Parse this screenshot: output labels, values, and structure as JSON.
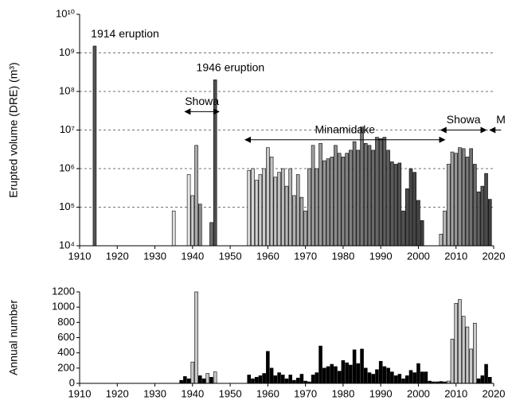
{
  "chart_data": [
    {
      "type": "bar",
      "ylabel": "Erupted volume (DRE) (m³)",
      "ylog": true,
      "grid": true,
      "xlim": [
        1910,
        2020
      ],
      "xticks": [
        1910,
        1920,
        1930,
        1940,
        1950,
        1960,
        1970,
        1980,
        1990,
        2000,
        2010,
        2020
      ],
      "ylim": [
        10000,
        10000000000
      ],
      "yticks": [
        {
          "value": 10000,
          "label": "10⁴"
        },
        {
          "value": 100000,
          "label": "10⁵"
        },
        {
          "value": 1000000,
          "label": "10⁶"
        },
        {
          "value": 10000000,
          "label": "10⁷"
        },
        {
          "value": 100000000,
          "label": "10⁸"
        },
        {
          "value": 1000000000,
          "label": "10⁹"
        },
        {
          "value": 10000000000,
          "label": "10¹⁰"
        }
      ],
      "series": [
        {
          "x": [
            1914
          ],
          "values": [
            1500000000
          ],
          "gradient": [
            "#555555",
            "#555555"
          ]
        },
        {
          "x": [
            1935
          ],
          "values": [
            80000
          ],
          "gradient": [
            "#dddddd",
            "#dddddd"
          ]
        },
        {
          "x": [
            1939,
            1940,
            1941,
            1942,
            1945,
            1946
          ],
          "values": [
            700000,
            200000,
            4000000,
            120000,
            40000,
            200000000
          ],
          "gradient": [
            "#e8e8e8",
            "#505050"
          ]
        },
        {
          "x": [
            1955,
            1956,
            1957,
            1958,
            1959,
            1960,
            1961,
            1962,
            1963,
            1964,
            1965,
            1966,
            1967,
            1968,
            1969,
            1970,
            1971,
            1972,
            1973,
            1974,
            1975,
            1976,
            1977,
            1978,
            1979,
            1980,
            1981,
            1982,
            1983,
            1984,
            1985,
            1986,
            1987,
            1988,
            1989,
            1990,
            1991,
            1992,
            1993,
            1994,
            1995,
            1996,
            1997,
            1998,
            1999,
            2000,
            2001
          ],
          "values": [
            900000,
            1000000,
            500000,
            700000,
            1000000,
            3500000,
            2000000,
            600000,
            800000,
            1000000,
            350000,
            1000000,
            200000,
            700000,
            180000,
            80000,
            1000000,
            4000000,
            1000000,
            4500000,
            1600000,
            1800000,
            2000000,
            4000000,
            2500000,
            2000000,
            2500000,
            3000000,
            5000000,
            3000000,
            12000000,
            4500000,
            4000000,
            3000000,
            6500000,
            6000000,
            6500000,
            3000000,
            1500000,
            1300000,
            1400000,
            80000,
            300000,
            1000000,
            800000,
            150000,
            45000
          ],
          "gradient": [
            "#d8d8d8",
            "#404040"
          ]
        },
        {
          "x": [
            2006,
            2007,
            2008,
            2009,
            2010,
            2011,
            2012,
            2013,
            2014,
            2015,
            2016,
            2017,
            2018,
            2019
          ],
          "values": [
            20000,
            80000,
            1300000,
            2700000,
            2500000,
            3500000,
            3300000,
            2000000,
            3300000,
            1300000,
            250000,
            350000,
            750000,
            160000
          ],
          "gradient": [
            "#c0c0c0",
            "#404040"
          ]
        }
      ],
      "annotations": [
        {
          "text": "1914 eruption",
          "x0": 1913,
          "y": 3000000000
        },
        {
          "text": "1946 eruption",
          "x0": 1941,
          "y": 400000000
        },
        {
          "text": "Showa",
          "x0": 1938,
          "x1": 1947,
          "y": 30000000,
          "heads": "both"
        },
        {
          "text": "Minamidake",
          "x0": 1954,
          "x1": 2007,
          "y": 5600000,
          "heads": "both"
        },
        {
          "text": "Showa",
          "x0": 2006,
          "x1": 2018,
          "y": 10000000,
          "heads": "both"
        },
        {
          "text": "M",
          "x0": 2019,
          "x1": 2022,
          "y": 10000000,
          "heads": "start"
        }
      ]
    },
    {
      "type": "bar",
      "ylabel": "Annual number",
      "xlim": [
        1910,
        2020
      ],
      "xticks": [
        1910,
        1920,
        1930,
        1940,
        1950,
        1960,
        1970,
        1980,
        1990,
        2000,
        2010,
        2020
      ],
      "ylim": [
        0,
        1200
      ],
      "yticks": [
        0,
        200,
        400,
        600,
        800,
        1000,
        1200
      ],
      "series": [
        {
          "color": "#000000",
          "x": [
            1937,
            1938,
            1939,
            1942,
            1943,
            1945,
            1955,
            1956,
            1957,
            1958,
            1959,
            1960,
            1961,
            1962,
            1963,
            1964,
            1965,
            1966,
            1967,
            1968,
            1969,
            1970,
            1971,
            1972,
            1973,
            1974,
            1975,
            1976,
            1977,
            1978,
            1979,
            1980,
            1981,
            1982,
            1983,
            1984,
            1985,
            1986,
            1987,
            1988,
            1989,
            1990,
            1991,
            1992,
            1993,
            1994,
            1995,
            1996,
            1997,
            1998,
            1999,
            2000,
            2001,
            2002,
            2003,
            2004,
            2005,
            2006,
            2007,
            2016,
            2017,
            2018,
            2019
          ],
          "values": [
            40,
            90,
            60,
            100,
            60,
            80,
            110,
            60,
            80,
            100,
            130,
            420,
            200,
            100,
            140,
            110,
            60,
            110,
            40,
            70,
            120,
            30,
            20,
            110,
            140,
            490,
            200,
            220,
            250,
            220,
            160,
            300,
            270,
            240,
            440,
            260,
            450,
            200,
            140,
            120,
            180,
            290,
            220,
            200,
            150,
            100,
            120,
            60,
            100,
            170,
            140,
            260,
            150,
            150,
            30,
            20,
            20,
            25,
            20,
            60,
            100,
            250,
            80
          ]
        },
        {
          "color": "#c8c8c8",
          "x": [
            1940,
            1941,
            1944,
            1946,
            2008,
            2009,
            2010,
            2011,
            2012,
            2013,
            2014,
            2015
          ],
          "values": [
            280,
            1200,
            130,
            150,
            30,
            580,
            1050,
            1100,
            880,
            740,
            450,
            790
          ]
        }
      ]
    }
  ]
}
